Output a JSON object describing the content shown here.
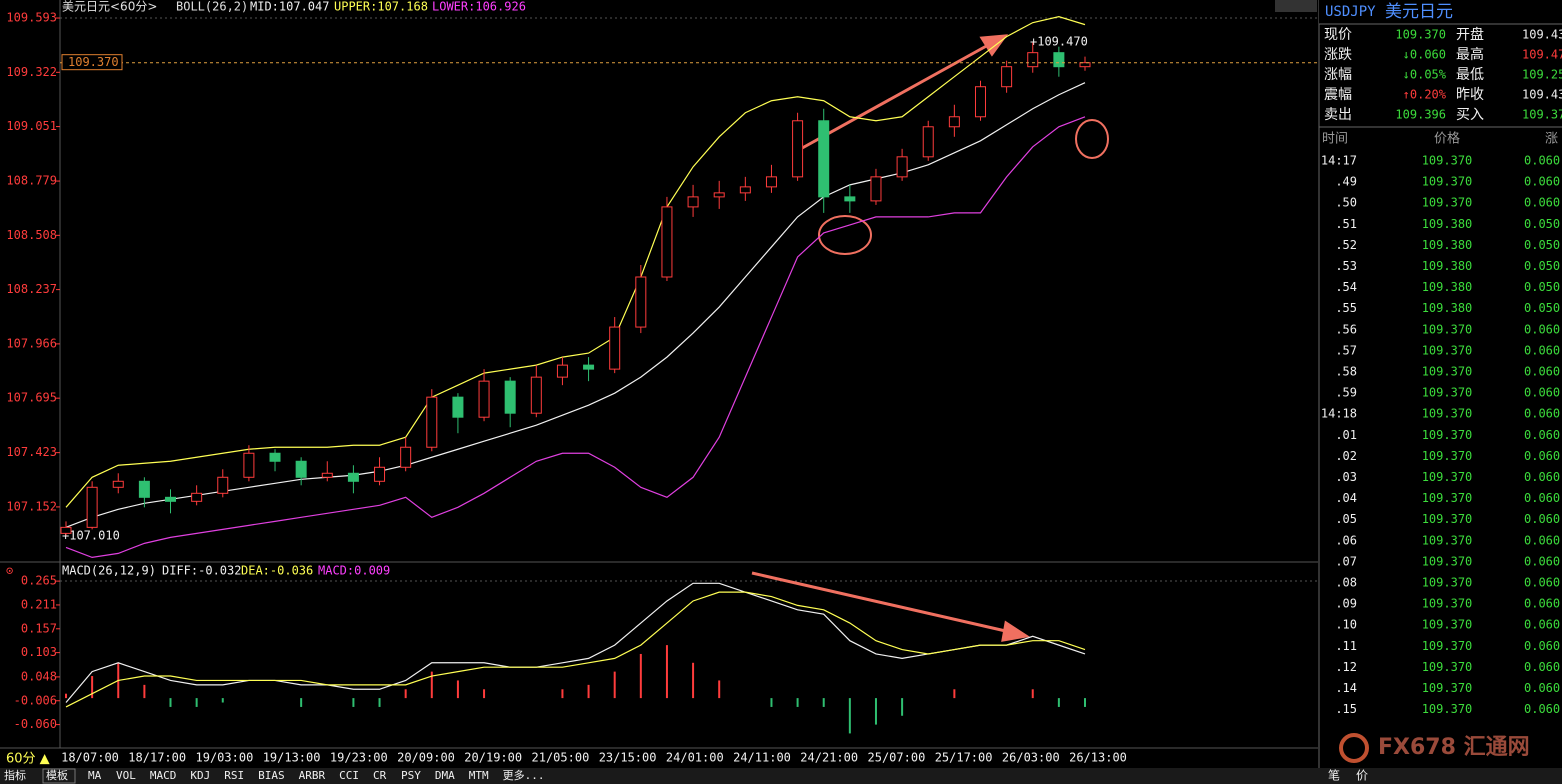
{
  "window": {
    "symbol_title": "美元日元<60分>",
    "indicator": "BOLL(26,2)",
    "mid": "MID:107.047",
    "upper": "UPPER:107.168",
    "lower": "LOWER:106.926",
    "macd_legend": [
      "MACD(26,12,9)",
      "DIFF:-0.032",
      "DEA:-0.036",
      "MACD:0.009"
    ],
    "high_marker": "+109.470",
    "low_marker": "+107.010",
    "period": "60分 ▲",
    "toolbar": [
      "指标",
      "模板",
      "MA",
      "VOL",
      "MACD",
      "KDJ",
      "RSI",
      "BIAS",
      "ARBR",
      "CCI",
      "CR",
      "PSY",
      "DMA",
      "MTM",
      "更多..."
    ],
    "footer_tabs": [
      "笔",
      "价"
    ],
    "logo": "FX678 汇通网"
  },
  "time_axis": [
    "18/07:00",
    "18/17:00",
    "19/03:00",
    "19/13:00",
    "19/23:00",
    "20/09:00",
    "20/19:00",
    "21/05:00",
    "23/15:00",
    "24/01:00",
    "24/11:00",
    "24/21:00",
    "25/07:00",
    "25/17:00",
    "26/03:00",
    "26/13:00"
  ],
  "quote": {
    "symbol": "USDJPY",
    "name": "美元日元",
    "rows": [
      [
        "现价",
        "109.370",
        "开盘",
        "109.43"
      ],
      [
        "涨跌",
        "↓0.060",
        "最高",
        "109.47"
      ],
      [
        "涨幅",
        "↓0.05%",
        "最低",
        "109.25"
      ],
      [
        "震幅",
        "↑0.20%",
        "昨收",
        "109.43"
      ],
      [
        "卖出",
        "109.396",
        "买入",
        "109.37"
      ]
    ]
  },
  "ticks_header": [
    "时间",
    "价格",
    "涨"
  ],
  "ticks": [
    [
      "14:17",
      "109.370",
      "0.060"
    ],
    [
      ".49",
      "109.370",
      "0.060"
    ],
    [
      ".50",
      "109.370",
      "0.060"
    ],
    [
      ".51",
      "109.380",
      "0.050"
    ],
    [
      ".52",
      "109.380",
      "0.050"
    ],
    [
      ".53",
      "109.380",
      "0.050"
    ],
    [
      ".54",
      "109.380",
      "0.050"
    ],
    [
      ".55",
      "109.380",
      "0.050"
    ],
    [
      ".56",
      "109.370",
      "0.060"
    ],
    [
      ".57",
      "109.370",
      "0.060"
    ],
    [
      ".58",
      "109.370",
      "0.060"
    ],
    [
      ".59",
      "109.370",
      "0.060"
    ],
    [
      "14:18",
      "109.370",
      "0.060"
    ],
    [
      ".01",
      "109.370",
      "0.060"
    ],
    [
      ".02",
      "109.370",
      "0.060"
    ],
    [
      ".03",
      "109.370",
      "0.060"
    ],
    [
      ".04",
      "109.370",
      "0.060"
    ],
    [
      ".05",
      "109.370",
      "0.060"
    ],
    [
      ".06",
      "109.370",
      "0.060"
    ],
    [
      ".07",
      "109.370",
      "0.060"
    ],
    [
      ".08",
      "109.370",
      "0.060"
    ],
    [
      ".09",
      "109.370",
      "0.060"
    ],
    [
      ".10",
      "109.370",
      "0.060"
    ],
    [
      ".11",
      "109.370",
      "0.060"
    ],
    [
      ".12",
      "109.370",
      "0.060"
    ],
    [
      ".14",
      "109.370",
      "0.060"
    ],
    [
      ".15",
      "109.370",
      "0.060"
    ]
  ],
  "chart_data": [
    {
      "type": "candlestick",
      "up_color": "#ff3c3c",
      "down_color": "#2fbf71",
      "ylim": [
        106.887,
        109.683
      ],
      "yticks": [
        109.593,
        109.322,
        109.051,
        108.779,
        108.508,
        108.237,
        107.966,
        107.695,
        107.423,
        107.152
      ],
      "current_price": {
        "value": 109.37,
        "label": "109.370"
      },
      "ohlc": [
        [
          107.02,
          107.08,
          107.01,
          107.05
        ],
        [
          107.05,
          107.28,
          107.04,
          107.25
        ],
        [
          107.25,
          107.32,
          107.22,
          107.28
        ],
        [
          107.28,
          107.3,
          107.15,
          107.2
        ],
        [
          107.2,
          107.24,
          107.12,
          107.18
        ],
        [
          107.18,
          107.26,
          107.16,
          107.22
        ],
        [
          107.22,
          107.34,
          107.2,
          107.3
        ],
        [
          107.3,
          107.46,
          107.28,
          107.42
        ],
        [
          107.42,
          107.44,
          107.33,
          107.38
        ],
        [
          107.38,
          107.4,
          107.26,
          107.3
        ],
        [
          107.3,
          107.38,
          107.28,
          107.32
        ],
        [
          107.32,
          107.36,
          107.22,
          107.28
        ],
        [
          107.28,
          107.4,
          107.26,
          107.35
        ],
        [
          107.35,
          107.5,
          107.33,
          107.45
        ],
        [
          107.45,
          107.74,
          107.43,
          107.7
        ],
        [
          107.7,
          107.72,
          107.52,
          107.6
        ],
        [
          107.6,
          107.84,
          107.58,
          107.78
        ],
        [
          107.78,
          107.8,
          107.55,
          107.62
        ],
        [
          107.62,
          107.86,
          107.6,
          107.8
        ],
        [
          107.8,
          107.9,
          107.76,
          107.86
        ],
        [
          107.86,
          107.9,
          107.78,
          107.84
        ],
        [
          107.84,
          108.1,
          107.82,
          108.05
        ],
        [
          108.05,
          108.36,
          108.02,
          108.3
        ],
        [
          108.3,
          108.7,
          108.28,
          108.65
        ],
        [
          108.65,
          108.76,
          108.6,
          108.7
        ],
        [
          108.7,
          108.78,
          108.64,
          108.72
        ],
        [
          108.72,
          108.8,
          108.68,
          108.75
        ],
        [
          108.75,
          108.86,
          108.72,
          108.8
        ],
        [
          108.8,
          109.12,
          108.78,
          109.08
        ],
        [
          109.08,
          109.14,
          108.62,
          108.7
        ],
        [
          108.7,
          108.76,
          108.62,
          108.68
        ],
        [
          108.68,
          108.84,
          108.66,
          108.8
        ],
        [
          108.8,
          108.94,
          108.78,
          108.9
        ],
        [
          108.9,
          109.08,
          108.88,
          109.05
        ],
        [
          109.05,
          109.16,
          109.0,
          109.1
        ],
        [
          109.1,
          109.28,
          109.08,
          109.25
        ],
        [
          109.25,
          109.38,
          109.22,
          109.35
        ],
        [
          109.35,
          109.47,
          109.32,
          109.42
        ],
        [
          109.42,
          109.45,
          109.3,
          109.35
        ],
        [
          109.35,
          109.4,
          109.33,
          109.37
        ]
      ],
      "bands": [
        {
          "color": "#f0f0f0",
          "values": [
            107.05,
            107.1,
            107.14,
            107.17,
            107.19,
            107.21,
            107.23,
            107.25,
            107.27,
            107.29,
            107.3,
            107.31,
            107.33,
            107.36,
            107.4,
            107.44,
            107.48,
            107.52,
            107.56,
            107.61,
            107.66,
            107.72,
            107.8,
            107.9,
            108.02,
            108.15,
            108.3,
            108.45,
            108.6,
            108.7,
            108.76,
            108.79,
            108.82,
            108.86,
            108.92,
            108.98,
            109.06,
            109.14,
            109.21,
            109.27
          ]
        },
        {
          "color": "#ffff54",
          "values": [
            107.15,
            107.3,
            107.36,
            107.37,
            107.38,
            107.4,
            107.42,
            107.44,
            107.45,
            107.45,
            107.45,
            107.46,
            107.46,
            107.5,
            107.7,
            107.76,
            107.82,
            107.84,
            107.86,
            107.9,
            107.92,
            108.0,
            108.3,
            108.65,
            108.85,
            109.0,
            109.12,
            109.18,
            109.2,
            109.18,
            109.1,
            109.08,
            109.1,
            109.2,
            109.3,
            109.4,
            109.5,
            109.57,
            109.6,
            109.56
          ]
        },
        {
          "color": "#e040e0",
          "values": [
            106.95,
            106.9,
            106.92,
            106.97,
            107.0,
            107.02,
            107.04,
            107.06,
            107.08,
            107.1,
            107.12,
            107.14,
            107.16,
            107.2,
            107.1,
            107.15,
            107.22,
            107.3,
            107.38,
            107.42,
            107.42,
            107.35,
            107.25,
            107.2,
            107.3,
            107.5,
            107.8,
            108.1,
            108.4,
            108.52,
            108.56,
            108.6,
            108.6,
            108.6,
            108.62,
            108.62,
            108.8,
            108.95,
            109.05,
            109.1
          ]
        }
      ]
    },
    {
      "type": "macd",
      "ylim": [
        -0.113,
        0.306
      ],
      "yticks": [
        0.265,
        0.211,
        0.157,
        0.103,
        0.048,
        -0.006,
        {
          "value": -0.06,
          "label": "-0.060"
        }
      ],
      "diff": {
        "color": "#f0f0f0",
        "values": [
          -0.01,
          0.06,
          0.08,
          0.06,
          0.04,
          0.03,
          0.03,
          0.04,
          0.04,
          0.03,
          0.03,
          0.02,
          0.02,
          0.04,
          0.08,
          0.08,
          0.08,
          0.07,
          0.07,
          0.08,
          0.09,
          0.12,
          0.17,
          0.22,
          0.26,
          0.26,
          0.24,
          0.22,
          0.2,
          0.19,
          0.13,
          0.1,
          0.09,
          0.1,
          0.11,
          0.12,
          0.12,
          0.14,
          0.12,
          0.1
        ]
      },
      "dea": {
        "color": "#ffff54",
        "values": [
          -0.02,
          0.01,
          0.04,
          0.05,
          0.05,
          0.04,
          0.04,
          0.04,
          0.04,
          0.04,
          0.03,
          0.03,
          0.03,
          0.03,
          0.05,
          0.06,
          0.07,
          0.07,
          0.07,
          0.07,
          0.08,
          0.09,
          0.12,
          0.17,
          0.22,
          0.24,
          0.24,
          0.23,
          0.21,
          0.2,
          0.17,
          0.13,
          0.11,
          0.1,
          0.11,
          0.12,
          0.12,
          0.13,
          0.13,
          0.11
        ]
      },
      "histogram": {
        "up_color": "#ff3c3c",
        "down_color": "#2fbf71",
        "values": [
          0.01,
          0.05,
          0.08,
          0.03,
          -0.02,
          -0.02,
          -0.01,
          0.0,
          0.0,
          -0.02,
          0.0,
          -0.02,
          -0.02,
          0.02,
          0.06,
          0.04,
          0.02,
          0.0,
          0.0,
          0.02,
          0.03,
          0.06,
          0.1,
          0.12,
          0.08,
          0.04,
          0.0,
          -0.02,
          -0.02,
          -0.02,
          -0.08,
          -0.06,
          -0.04,
          0.0,
          0.02,
          0.0,
          0.0,
          0.02,
          -0.02,
          -0.02
        ]
      }
    }
  ]
}
